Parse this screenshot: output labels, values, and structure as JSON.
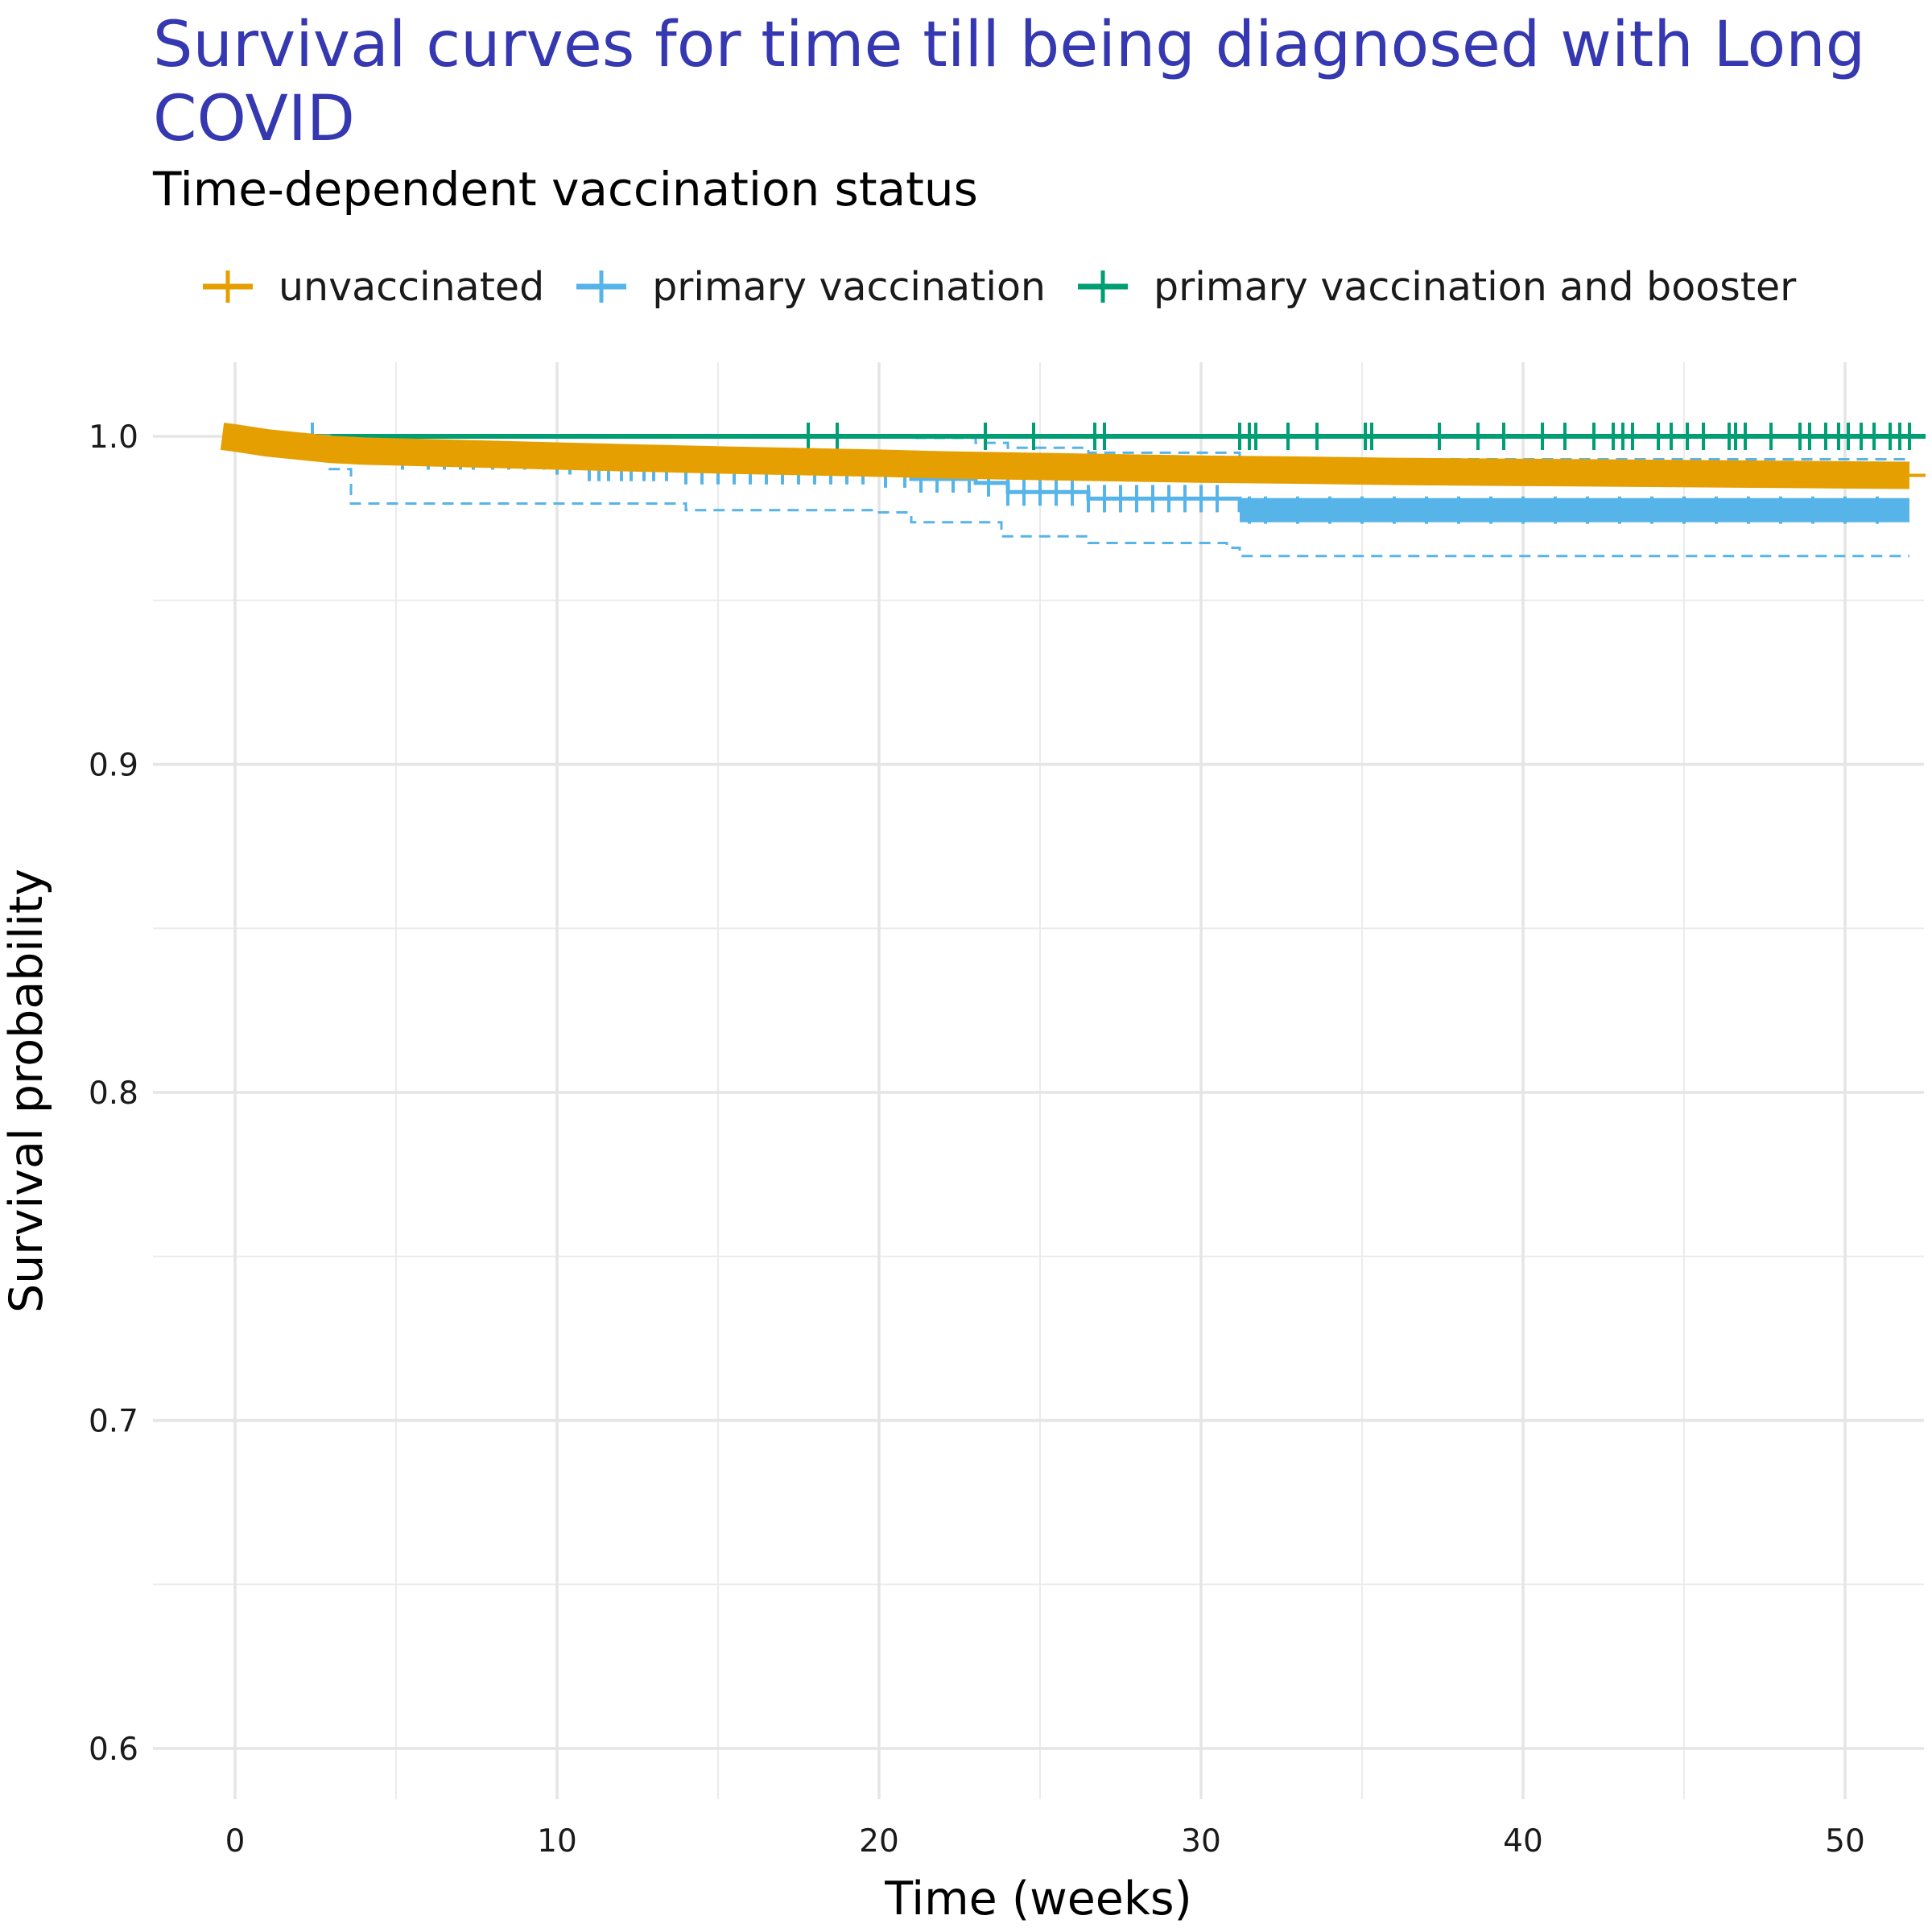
{
  "chart_data": {
    "type": "line",
    "title": "Survival curves for time till being diagnosed with Long COVID",
    "subtitle": "Time-dependent vaccination status",
    "xlabel": "Time (weeks)",
    "ylabel": "Survival probability",
    "xlim": [
      -2.5,
      52.5
    ],
    "ylim": [
      0.585,
      1.022
    ],
    "x_ticks": [
      0,
      10,
      20,
      30,
      40,
      50
    ],
    "x_tick_labels": [
      "0",
      "10",
      "20",
      "30",
      "40",
      "50"
    ],
    "y_ticks": [
      0.6,
      0.7,
      0.8,
      0.9,
      1.0
    ],
    "y_tick_labels": [
      "0.6",
      "0.7",
      "0.8",
      "0.9",
      "1.0"
    ],
    "grid": true,
    "legend_position": "top",
    "colors": {
      "unvaccinated": "#E69F00",
      "primary": "#56B4E9",
      "booster": "#009E73"
    },
    "series": [
      {
        "name": "unvaccinated",
        "color": "#E69F00",
        "x": [
          -0.4,
          0,
          1,
          2,
          3,
          4,
          6,
          8,
          10,
          12,
          15,
          18,
          20,
          22,
          25,
          28,
          30,
          33,
          36,
          40,
          44,
          48,
          52
        ],
        "y": [
          1.0,
          0.9995,
          0.998,
          0.997,
          0.996,
          0.9955,
          0.995,
          0.9945,
          0.994,
          0.9935,
          0.9928,
          0.9922,
          0.9918,
          0.9913,
          0.9908,
          0.9903,
          0.99,
          0.9897,
          0.9893,
          0.989,
          0.9887,
          0.9884,
          0.9881
        ]
      },
      {
        "name": "primary vaccination",
        "color": "#56B4E9",
        "x": [
          2.2,
          2.9,
          5,
          10,
          11,
          14,
          20,
          21,
          23,
          24,
          26.5,
          30.5,
          31.2,
          52
        ],
        "y": [
          1.0,
          0.9965,
          0.994,
          0.9925,
          0.9905,
          0.9895,
          0.9885,
          0.987,
          0.9858,
          0.983,
          0.981,
          0.981,
          0.9775,
          0.9775
        ],
        "ci_upper": {
          "x": [
            2.2,
            20,
            21,
            23,
            24,
            26.5,
            31.2,
            52
          ],
          "y": [
            1.0,
            1.0,
            0.9995,
            0.998,
            0.9965,
            0.995,
            0.993,
            0.993
          ]
        },
        "ci_lower": {
          "x": [
            2.2,
            2.9,
            3.6,
            14,
            20,
            21,
            23.8,
            26.5,
            30.8,
            31.2,
            52
          ],
          "y": [
            1.0,
            0.99,
            0.9795,
            0.9775,
            0.9768,
            0.9738,
            0.9695,
            0.9675,
            0.966,
            0.9635,
            0.9635
          ]
        },
        "censor_x": [
          2.4,
          5.2,
          6,
          6.5,
          7,
          7.4,
          8,
          8.5,
          9,
          9.6,
          10,
          10.4,
          11,
          11.3,
          11.6,
          12,
          12.3,
          12.7,
          13,
          13.4,
          14,
          14.5,
          15,
          15.5,
          16,
          16.5,
          17,
          17.5,
          18,
          18.5,
          19,
          19.5,
          20.2,
          20.8,
          21.3,
          21.8,
          22.3,
          22.8,
          23.4,
          24,
          24.5,
          25,
          25.5,
          26,
          26.5,
          27,
          27.5,
          28,
          28.5,
          29,
          29.5,
          30,
          30.5,
          31.5,
          32,
          33,
          34,
          35,
          36,
          37,
          38,
          39,
          40,
          41,
          42,
          43,
          44,
          45,
          46,
          47,
          48,
          49,
          50,
          51
        ]
      },
      {
        "name": "primary vaccination and booster",
        "color": "#009E73",
        "x": [
          2.5,
          52.5
        ],
        "y": [
          1.0,
          1.0
        ],
        "censor_x": [
          17.8,
          18.7,
          23.3,
          24.8,
          26.7,
          27,
          31.2,
          31.5,
          31.7,
          32.7,
          33.6,
          35.1,
          35.3,
          37.4,
          38.6,
          39.4,
          40.6,
          41.3,
          42.2,
          42.8,
          43.1,
          43.4,
          44.2,
          44.6,
          45.1,
          45.6,
          46.4,
          46.6,
          46.9,
          47.7,
          48.6,
          48.9,
          49.4,
          49.8,
          50.1,
          50.5,
          50.9,
          51.4,
          51.7,
          52.0
        ]
      }
    ]
  }
}
